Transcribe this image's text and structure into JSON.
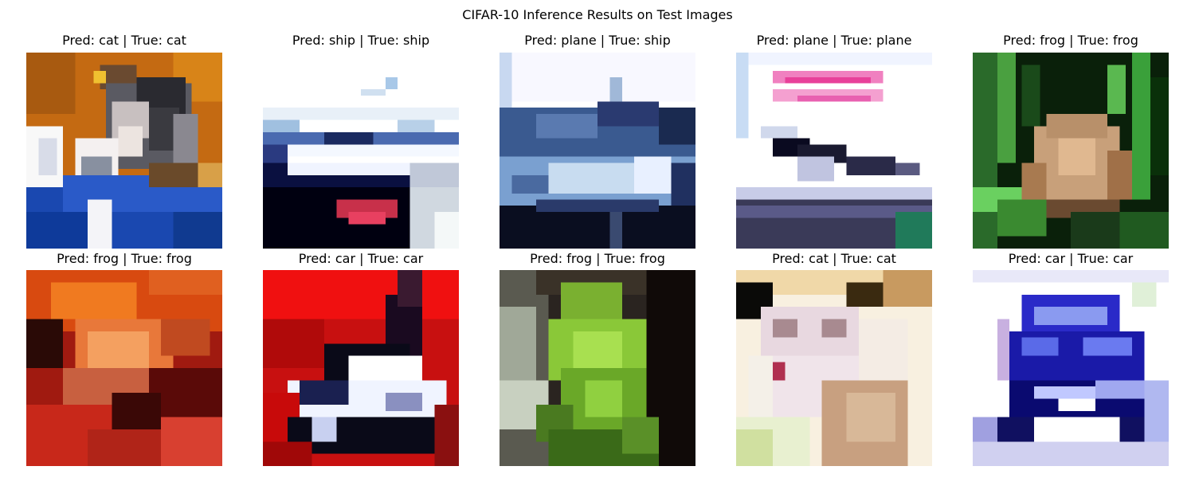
{
  "figure": {
    "title": "CIFAR-10 Inference Results on Test Images"
  },
  "panels": [
    {
      "title": "Pred: cat | True: cat",
      "pred": "cat",
      "true": "cat",
      "subject": "cat"
    },
    {
      "title": "Pred: ship | True: ship",
      "pred": "ship",
      "true": "ship",
      "subject": "ship"
    },
    {
      "title": "Pred: plane | True: ship",
      "pred": "plane",
      "true": "ship",
      "subject": "ship"
    },
    {
      "title": "Pred: plane | True: plane",
      "pred": "plane",
      "true": "plane",
      "subject": "plane"
    },
    {
      "title": "Pred: frog | True: frog",
      "pred": "frog",
      "true": "frog",
      "subject": "frog"
    },
    {
      "title": "Pred: frog | True: frog",
      "pred": "frog",
      "true": "frog",
      "subject": "frog"
    },
    {
      "title": "Pred: car | True: car",
      "pred": "car",
      "true": "car",
      "subject": "car"
    },
    {
      "title": "Pred: frog | True: frog",
      "pred": "frog",
      "true": "frog",
      "subject": "frog"
    },
    {
      "title": "Pred: cat | True: cat",
      "pred": "cat",
      "true": "cat",
      "subject": "cat"
    },
    {
      "title": "Pred: car | True: car",
      "pred": "car",
      "true": "car",
      "subject": "car"
    }
  ]
}
